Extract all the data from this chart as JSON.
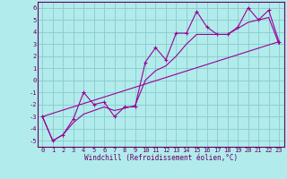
{
  "title": "",
  "xlabel": "Windchill (Refroidissement éolien,°C)",
  "ylabel": "",
  "bg_color": "#b2ebeb",
  "grid_color": "#8ccfcf",
  "line_color": "#990099",
  "xlim": [
    -0.5,
    23.5
  ],
  "ylim": [
    -5.5,
    6.5
  ],
  "xticks": [
    0,
    1,
    2,
    3,
    4,
    5,
    6,
    7,
    8,
    9,
    10,
    11,
    12,
    13,
    14,
    15,
    16,
    17,
    18,
    19,
    20,
    21,
    22,
    23
  ],
  "yticks": [
    -5,
    -4,
    -3,
    -2,
    -1,
    0,
    1,
    2,
    3,
    4,
    5,
    6
  ],
  "series1_x": [
    0,
    1,
    2,
    3,
    4,
    5,
    6,
    7,
    8,
    9,
    10,
    11,
    12,
    13,
    14,
    15,
    16,
    17,
    18,
    19,
    20,
    21,
    22,
    23
  ],
  "series1_y": [
    -3.0,
    -5.0,
    -4.5,
    -3.2,
    -1.0,
    -2.0,
    -1.8,
    -3.0,
    -2.2,
    -2.2,
    1.5,
    2.7,
    1.7,
    3.9,
    3.9,
    5.7,
    4.4,
    3.8,
    3.8,
    4.4,
    6.0,
    5.0,
    5.8,
    3.2
  ],
  "series2_x": [
    0,
    1,
    2,
    3,
    4,
    5,
    6,
    7,
    8,
    9,
    10,
    11,
    12,
    13,
    14,
    15,
    16,
    17,
    18,
    19,
    20,
    21,
    22,
    23
  ],
  "series2_y": [
    -3.0,
    -5.0,
    -4.5,
    -3.5,
    -2.8,
    -2.5,
    -2.2,
    -2.5,
    -2.3,
    -2.1,
    0.0,
    0.8,
    1.2,
    2.0,
    3.0,
    3.8,
    3.8,
    3.8,
    3.8,
    4.3,
    4.8,
    5.0,
    5.2,
    3.0
  ],
  "series3_x": [
    0,
    23
  ],
  "series3_y": [
    -3.0,
    3.2
  ],
  "tick_fontsize": 5.0,
  "xlabel_fontsize": 5.5
}
